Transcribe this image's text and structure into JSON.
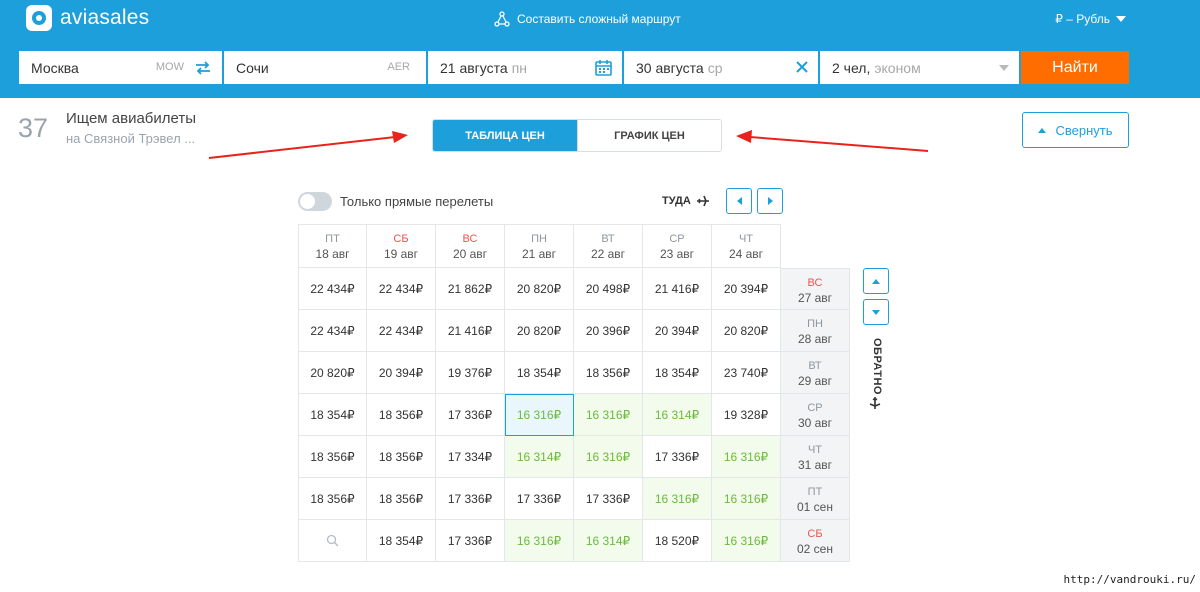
{
  "header": {
    "logo_text": "aviasales",
    "complex_route_label": "Составить сложный маршрут",
    "currency_label": "₽ – Рубль",
    "brand_color": "#1d9fdb"
  },
  "search": {
    "origin_city": "Москва",
    "origin_code": "MOW",
    "dest_city": "Сочи",
    "dest_code": "AER",
    "depart_date": "21 августа",
    "depart_weekday": "пн",
    "return_date": "30 августа",
    "return_weekday": "ср",
    "passengers": "2 чел,",
    "cabin_class": "эконом",
    "search_button": "Найти",
    "search_button_color": "#ff6d00"
  },
  "status": {
    "count": "37",
    "title": "Ищем авиабилеты",
    "subtitle": "на Связной Трэвел ..."
  },
  "view_toggle": {
    "table_label": "ТАБЛИЦА ЦЕН",
    "chart_label": "ГРАФИК ЦЕН"
  },
  "collapse_label": "Свернуть",
  "grid": {
    "direct_only_label": "Только прямые перелеты",
    "outbound_label": "ТУДА",
    "return_label": "ОБРАТНО",
    "columns": [
      {
        "weekday": "ПТ",
        "date": "18 авг",
        "weekend": false
      },
      {
        "weekday": "СБ",
        "date": "19 авг",
        "weekend": true
      },
      {
        "weekday": "ВС",
        "date": "20 авг",
        "weekend": true
      },
      {
        "weekday": "ПН",
        "date": "21 авг",
        "weekend": false
      },
      {
        "weekday": "ВТ",
        "date": "22 авг",
        "weekend": false
      },
      {
        "weekday": "СР",
        "date": "23 авг",
        "weekend": false
      },
      {
        "weekday": "ЧТ",
        "date": "24 авг",
        "weekend": false
      }
    ],
    "rows": [
      {
        "weekday": "ВС",
        "date": "27 авг",
        "weekend": true,
        "prices": [
          "22 434₽",
          "22 434₽",
          "21 862₽",
          "20 820₽",
          "20 498₽",
          "21 416₽",
          "20 394₽"
        ],
        "cheap": [
          false,
          false,
          false,
          false,
          false,
          false,
          false
        ]
      },
      {
        "weekday": "ПН",
        "date": "28 авг",
        "weekend": false,
        "prices": [
          "22 434₽",
          "22 434₽",
          "21 416₽",
          "20 820₽",
          "20 396₽",
          "20 394₽",
          "20 820₽"
        ],
        "cheap": [
          false,
          false,
          false,
          false,
          false,
          false,
          false
        ]
      },
      {
        "weekday": "ВТ",
        "date": "29 авг",
        "weekend": false,
        "prices": [
          "20 820₽",
          "20 394₽",
          "19 376₽",
          "18 354₽",
          "18 356₽",
          "18 354₽",
          "23 740₽"
        ],
        "cheap": [
          false,
          false,
          false,
          false,
          false,
          false,
          false
        ]
      },
      {
        "weekday": "СР",
        "date": "30 авг",
        "weekend": false,
        "prices": [
          "18 354₽",
          "18 356₽",
          "17 336₽",
          "16 316₽",
          "16 316₽",
          "16 314₽",
          "19 328₽"
        ],
        "cheap": [
          false,
          false,
          false,
          true,
          true,
          true,
          false
        ]
      },
      {
        "weekday": "ЧТ",
        "date": "31 авг",
        "weekend": false,
        "prices": [
          "18 356₽",
          "18 356₽",
          "17 334₽",
          "16 314₽",
          "16 316₽",
          "17 336₽",
          "16 316₽"
        ],
        "cheap": [
          false,
          false,
          false,
          true,
          true,
          false,
          true
        ]
      },
      {
        "weekday": "ПТ",
        "date": "01 сен",
        "weekend": false,
        "prices": [
          "18 356₽",
          "18 356₽",
          "17 336₽",
          "17 336₽",
          "17 336₽",
          "16 316₽",
          "16 316₽"
        ],
        "cheap": [
          false,
          false,
          false,
          false,
          false,
          true,
          true
        ]
      },
      {
        "weekday": "СБ",
        "date": "02 сен",
        "weekend": true,
        "prices": [
          "",
          "18 354₽",
          "17 336₽",
          "16 316₽",
          "16 314₽",
          "18 520₽",
          "16 316₽"
        ],
        "cheap": [
          false,
          false,
          false,
          true,
          true,
          false,
          true
        ]
      }
    ],
    "selected": {
      "row": 3,
      "col": 3
    },
    "cheap_color": "#6aba3c",
    "weekend_color": "#ef5350"
  },
  "watermark": "http://vandrouki.ru/"
}
